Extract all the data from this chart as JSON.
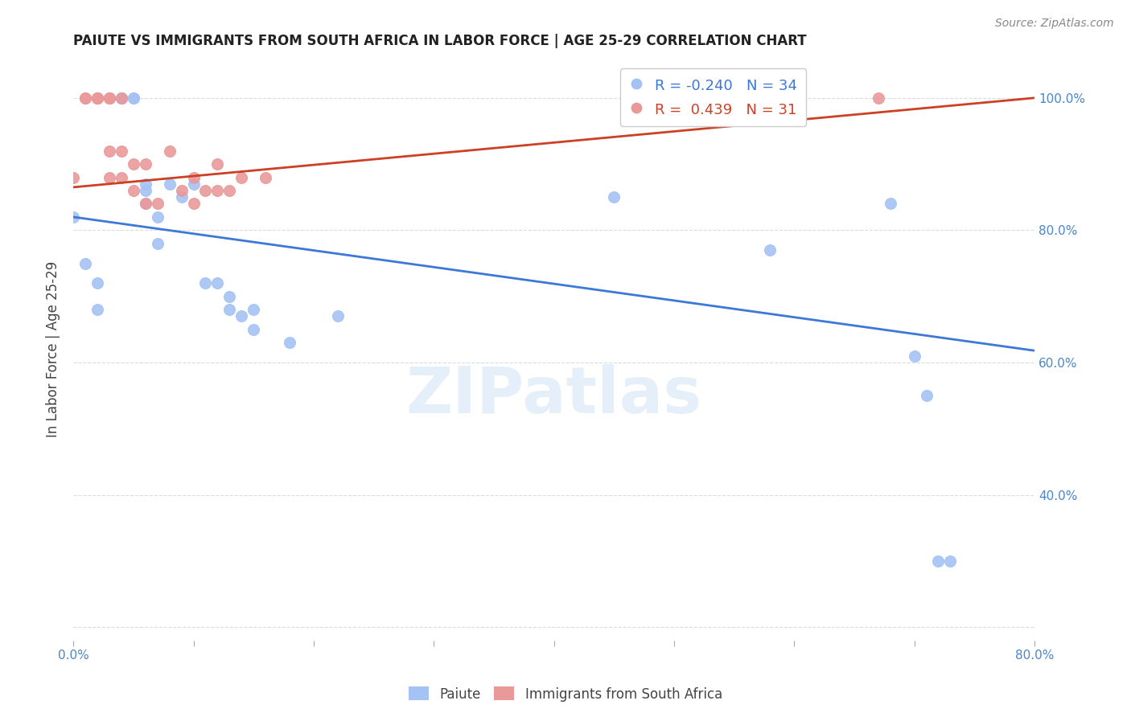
{
  "title": "PAIUTE VS IMMIGRANTS FROM SOUTH AFRICA IN LABOR FORCE | AGE 25-29 CORRELATION CHART",
  "source": "Source: ZipAtlas.com",
  "ylabel": "In Labor Force | Age 25-29",
  "blue_R": -0.24,
  "blue_N": 34,
  "pink_R": 0.439,
  "pink_N": 31,
  "blue_color": "#a4c2f4",
  "pink_color": "#ea9999",
  "blue_line_color": "#3c78d8",
  "pink_line_color": "#cc4125",
  "grid_color": "#cccccc",
  "axis_label_color": "#4a86c8",
  "watermark": "ZIPatlas",
  "xmin": 0.0,
  "xmax": 0.8,
  "ymin": 0.18,
  "ymax": 1.06,
  "x_ticks": [
    0.0,
    0.1,
    0.2,
    0.3,
    0.4,
    0.5,
    0.6,
    0.7,
    0.8
  ],
  "x_tick_labels": [
    "0.0%",
    "",
    "",
    "",
    "",
    "",
    "",
    "",
    "80.0%"
  ],
  "y_ticks": [
    0.2,
    0.4,
    0.6,
    0.8,
    1.0
  ],
  "y_tick_labels_right": [
    "",
    "40.0%",
    "60.0%",
    "80.0%",
    "100.0%"
  ],
  "blue_scatter_x": [
    0.0,
    0.01,
    0.02,
    0.02,
    0.03,
    0.04,
    0.04,
    0.04,
    0.05,
    0.05,
    0.06,
    0.06,
    0.06,
    0.07,
    0.07,
    0.08,
    0.09,
    0.1,
    0.11,
    0.12,
    0.13,
    0.13,
    0.14,
    0.15,
    0.15,
    0.18,
    0.22,
    0.45,
    0.58,
    0.68,
    0.7,
    0.71,
    0.72,
    0.73
  ],
  "blue_scatter_y": [
    0.82,
    0.75,
    0.72,
    0.68,
    1.0,
    1.0,
    1.0,
    1.0,
    1.0,
    1.0,
    0.84,
    0.87,
    0.86,
    0.82,
    0.78,
    0.87,
    0.85,
    0.87,
    0.72,
    0.72,
    0.7,
    0.68,
    0.67,
    0.68,
    0.65,
    0.63,
    0.67,
    0.85,
    0.77,
    0.84,
    0.61,
    0.55,
    0.3,
    0.3
  ],
  "pink_scatter_x": [
    0.0,
    0.01,
    0.01,
    0.02,
    0.02,
    0.02,
    0.02,
    0.03,
    0.03,
    0.03,
    0.03,
    0.03,
    0.04,
    0.04,
    0.04,
    0.05,
    0.05,
    0.06,
    0.06,
    0.07,
    0.08,
    0.09,
    0.1,
    0.1,
    0.11,
    0.12,
    0.12,
    0.13,
    0.14,
    0.16,
    0.67
  ],
  "pink_scatter_y": [
    0.88,
    1.0,
    1.0,
    1.0,
    1.0,
    1.0,
    1.0,
    1.0,
    1.0,
    1.0,
    0.92,
    0.88,
    1.0,
    0.92,
    0.88,
    0.9,
    0.86,
    0.9,
    0.84,
    0.84,
    0.92,
    0.86,
    0.88,
    0.84,
    0.86,
    0.9,
    0.86,
    0.86,
    0.88,
    0.88,
    1.0
  ],
  "blue_trendline_x0": 0.0,
  "blue_trendline_y0": 0.82,
  "blue_trendline_x1": 0.8,
  "blue_trendline_y1": 0.618,
  "pink_trendline_x0": 0.0,
  "pink_trendline_y0": 0.865,
  "pink_trendline_x1": 0.8,
  "pink_trendline_y1": 1.0
}
